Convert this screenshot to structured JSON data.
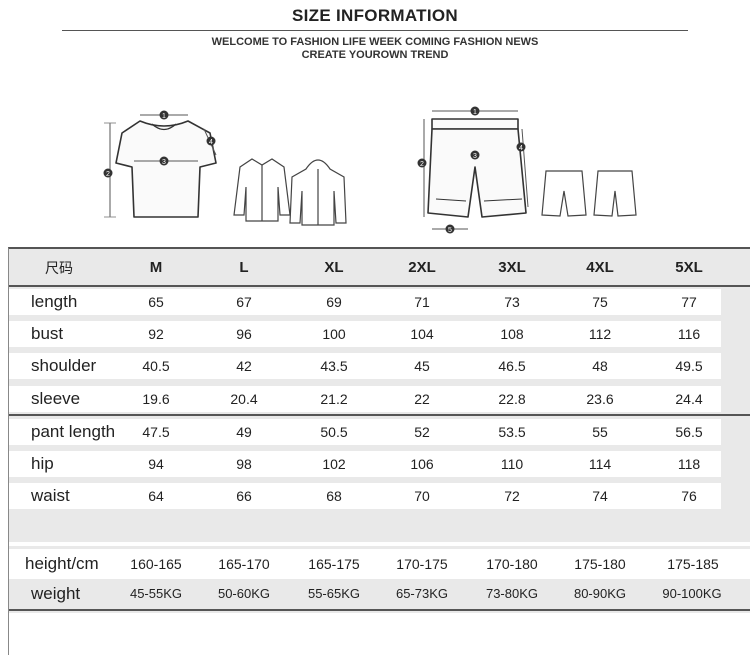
{
  "header": {
    "title": "SIZE INFORMATION",
    "line1": "WELCOME TO FASHION LIFE WEEK COMING FASHION NEWS",
    "line2": "CREATE YOUROWN TREND"
  },
  "figures": {
    "shirt_markers": [
      "1",
      "2",
      "3",
      "4"
    ],
    "pants_markers": [
      "1",
      "2",
      "3",
      "4",
      "5"
    ]
  },
  "table": {
    "corner_label": "尺码",
    "sizes": [
      "M",
      "L",
      "XL",
      "2XL",
      "3XL",
      "4XL",
      "5XL"
    ],
    "rows": [
      {
        "label": "length",
        "values": [
          "65",
          "67",
          "69",
          "71",
          "73",
          "75",
          "77"
        ]
      },
      {
        "label": "bust",
        "values": [
          "92",
          "96",
          "100",
          "104",
          "108",
          "112",
          "116"
        ]
      },
      {
        "label": "shoulder",
        "values": [
          "40.5",
          "42",
          "43.5",
          "45",
          "46.5",
          "48",
          "49.5"
        ]
      },
      {
        "label": "sleeve",
        "values": [
          "19.6",
          "20.4",
          "21.2",
          "22",
          "22.8",
          "23.6",
          "24.4"
        ]
      },
      {
        "label": "pant length",
        "values": [
          "47.5",
          "49",
          "50.5",
          "52",
          "53.5",
          "55",
          "56.5"
        ]
      },
      {
        "label": "hip",
        "values": [
          "94",
          "98",
          "102",
          "106",
          "110",
          "114",
          "118"
        ]
      },
      {
        "label": "waist",
        "values": [
          "64",
          "66",
          "68",
          "70",
          "72",
          "74",
          "76"
        ]
      }
    ],
    "rec_rows": [
      {
        "label": "height/cm",
        "values": [
          "160-165",
          "165-170",
          "165-175",
          "170-175",
          "170-180",
          "175-180",
          "175-185"
        ]
      },
      {
        "label": "weight",
        "values": [
          "45-55KG",
          "50-60KG",
          "55-65KG",
          "65-73KG",
          "73-80KG",
          "80-90KG",
          "90-100KG"
        ]
      }
    ]
  }
}
